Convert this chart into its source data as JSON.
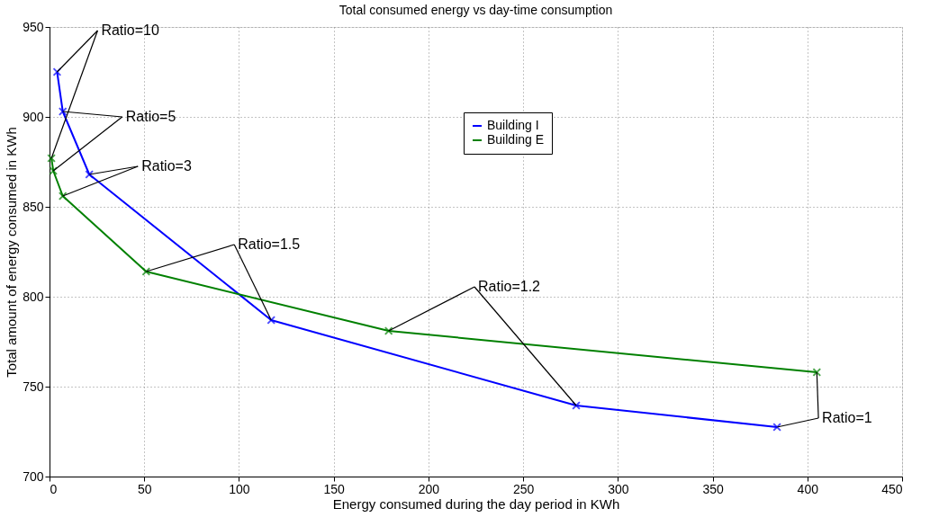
{
  "chart_data": {
    "type": "line",
    "title": "Total consumed energy vs day-time consumption",
    "xlabel": "Energy consumed during the day period in KWh",
    "ylabel": "Total amount of energy consumed in KWh",
    "series": [
      {
        "name": "Building I",
        "color": "#0000ff",
        "x": [
          4,
          7,
          21,
          117,
          278,
          384
        ],
        "values": [
          925,
          903,
          868,
          787,
          739.5,
          727.5
        ]
      },
      {
        "name": "Building E",
        "color": "#008000",
        "x": [
          1,
          2,
          7,
          51,
          179,
          405
        ],
        "values": [
          877,
          870,
          856,
          814,
          781,
          758
        ]
      }
    ],
    "annotations": [
      {
        "text": "Ratio=10",
        "x": 4,
        "y": 925
      },
      {
        "text": "Ratio=5",
        "x": 7,
        "y": 903
      },
      {
        "text": "Ratio=3",
        "x": 21,
        "y": 868
      },
      {
        "text": "Ratio=1.5",
        "x": 117,
        "y": 787
      },
      {
        "text": "Ratio=1.2",
        "x": 278,
        "y": 739.5
      },
      {
        "text": "Ratio=1",
        "x": 384,
        "y": 727.5
      }
    ],
    "xlim": [
      0,
      450
    ],
    "xticks": [
      0,
      50,
      100,
      150,
      200,
      250,
      300,
      350,
      400,
      450
    ],
    "ylim": [
      700,
      950
    ],
    "yticks": [
      700,
      750,
      800,
      850,
      900,
      950
    ],
    "grid": true,
    "legend": "top right",
    "marker": "cross",
    "line_style": "solid"
  }
}
